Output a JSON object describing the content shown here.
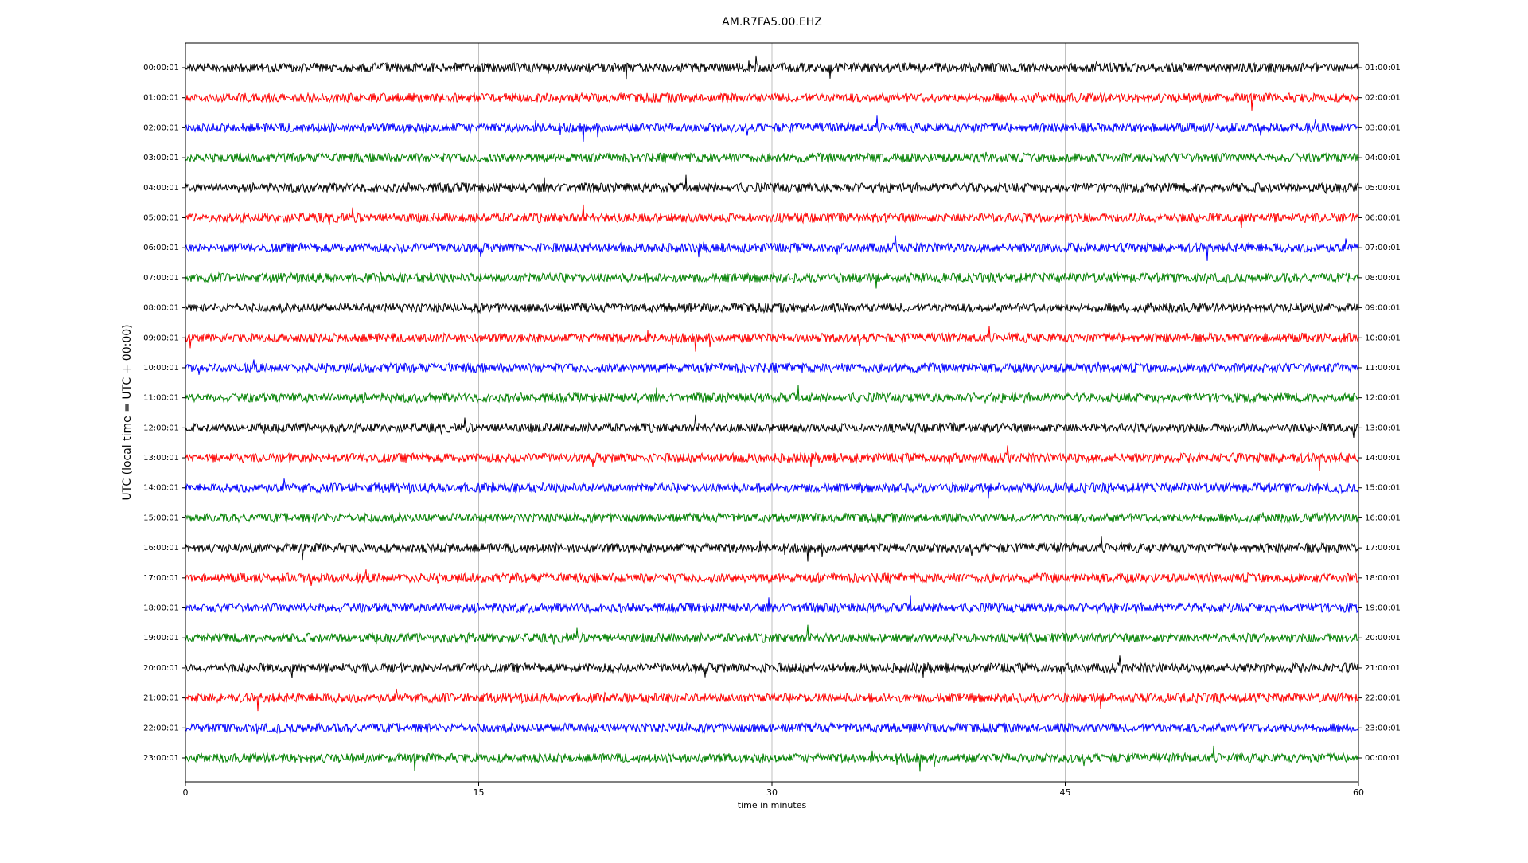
{
  "chart_data": {
    "type": "helicorder",
    "title": "AM.R7FA5.00.EHZ",
    "x_label": "time in minutes",
    "y_label": "UTC (local time = UTC + 00:00)",
    "xlim": [
      0,
      60
    ],
    "xticks": [
      0,
      15,
      30,
      45,
      60
    ],
    "grid": true,
    "rows": [
      {
        "left": "00:00:01",
        "right": "01:00:01",
        "color": "#000000"
      },
      {
        "left": "01:00:01",
        "right": "02:00:01",
        "color": "#ff0000"
      },
      {
        "left": "02:00:01",
        "right": "03:00:01",
        "color": "#0000ff"
      },
      {
        "left": "03:00:01",
        "right": "04:00:01",
        "color": "#008000"
      },
      {
        "left": "04:00:01",
        "right": "05:00:01",
        "color": "#000000"
      },
      {
        "left": "05:00:01",
        "right": "06:00:01",
        "color": "#ff0000"
      },
      {
        "left": "06:00:01",
        "right": "07:00:01",
        "color": "#0000ff"
      },
      {
        "left": "07:00:01",
        "right": "08:00:01",
        "color": "#008000"
      },
      {
        "left": "08:00:01",
        "right": "09:00:01",
        "color": "#000000"
      },
      {
        "left": "09:00:01",
        "right": "10:00:01",
        "color": "#ff0000"
      },
      {
        "left": "10:00:01",
        "right": "11:00:01",
        "color": "#0000ff"
      },
      {
        "left": "11:00:01",
        "right": "12:00:01",
        "color": "#008000"
      },
      {
        "left": "12:00:01",
        "right": "13:00:01",
        "color": "#000000"
      },
      {
        "left": "13:00:01",
        "right": "14:00:01",
        "color": "#ff0000"
      },
      {
        "left": "14:00:01",
        "right": "15:00:01",
        "color": "#0000ff"
      },
      {
        "left": "15:00:01",
        "right": "16:00:01",
        "color": "#008000"
      },
      {
        "left": "16:00:01",
        "right": "17:00:01",
        "color": "#000000"
      },
      {
        "left": "17:00:01",
        "right": "18:00:01",
        "color": "#ff0000"
      },
      {
        "left": "18:00:01",
        "right": "19:00:01",
        "color": "#0000ff"
      },
      {
        "left": "19:00:01",
        "right": "20:00:01",
        "color": "#008000"
      },
      {
        "left": "20:00:01",
        "right": "21:00:01",
        "color": "#000000"
      },
      {
        "left": "21:00:01",
        "right": "22:00:01",
        "color": "#ff0000"
      },
      {
        "left": "22:00:01",
        "right": "23:00:01",
        "color": "#0000ff"
      },
      {
        "left": "23:00:01",
        "right": "00:00:01",
        "color": "#008000"
      }
    ]
  }
}
